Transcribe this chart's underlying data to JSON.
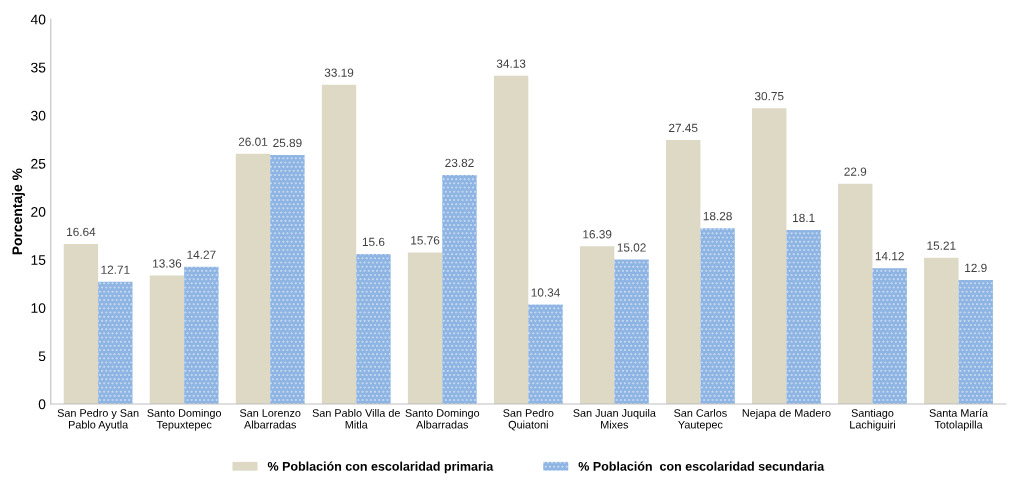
{
  "chart_data": {
    "type": "bar",
    "ylabel": "Porcentaje %",
    "categories": [
      "San Pedro y San\nPablo Ayutla",
      "Santo Domingo\nTepuxtepec",
      "San Lorenzo\nAlbarradas",
      "San Pablo Villa de\nMitla",
      "Santo Domingo\nAlbarradas",
      "San Pedro\nQuiatoni",
      "San Juan Juquila\nMixes",
      "San Carlos\nYautepec",
      "Nejapa de Madero",
      "Santiago\nLachiguiri",
      "Santa María\nTotolapilla"
    ],
    "series": [
      {
        "name": "% Población con escolaridad primaria",
        "color": "#ddd9c4",
        "values": [
          16.64,
          13.36,
          26.01,
          33.19,
          15.76,
          34.13,
          16.39,
          27.45,
          30.75,
          22.9,
          15.21
        ]
      },
      {
        "name": "% Población  con escolaridad secundaria",
        "color": "#8db4e2",
        "values": [
          12.71,
          14.27,
          25.89,
          15.6,
          23.82,
          10.34,
          15.02,
          18.28,
          18.1,
          14.12,
          12.9
        ]
      }
    ],
    "ylim": [
      0,
      40
    ],
    "yticks": [
      0,
      5,
      10,
      15,
      20,
      25,
      30,
      35,
      40
    ],
    "data_labels": true,
    "legend": "bottom",
    "grid": false
  }
}
